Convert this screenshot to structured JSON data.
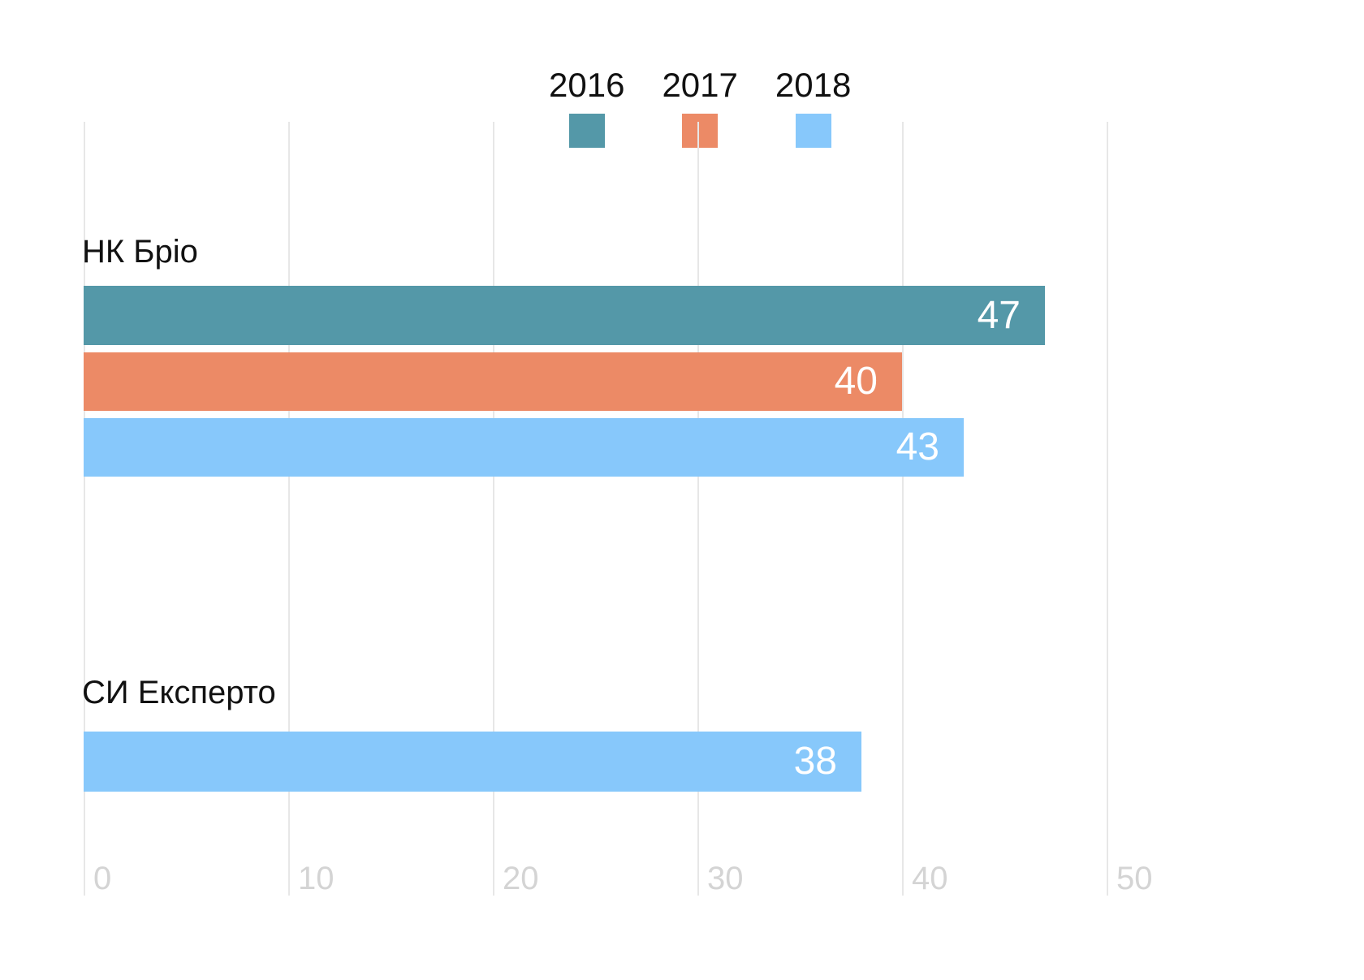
{
  "legend": {
    "items": [
      {
        "label": "2016",
        "color": "#5498A8"
      },
      {
        "label": "2017",
        "color": "#EC8A66"
      },
      {
        "label": "2018",
        "color": "#87C8FB"
      }
    ]
  },
  "x_axis": {
    "tick_labels": [
      "0",
      "10",
      "20",
      "30",
      "40",
      "50"
    ],
    "tick_values": [
      0,
      10,
      20,
      30,
      40,
      50
    ],
    "max": 50
  },
  "groups": [
    {
      "label": "НК Бріо",
      "bars": [
        {
          "series": "2016",
          "value": 47,
          "color": "#5498A8"
        },
        {
          "series": "2017",
          "value": 40,
          "color": "#EC8A66"
        },
        {
          "series": "2018",
          "value": 43,
          "color": "#87C8FB"
        }
      ]
    },
    {
      "label": "СИ Експерто",
      "bars": [
        {
          "series": "2018",
          "value": 38,
          "color": "#87C8FB"
        }
      ]
    }
  ],
  "chart_data": {
    "type": "bar",
    "orientation": "horizontal",
    "title": "",
    "xlabel": "",
    "ylabel": "",
    "categories": [
      "НК Бріо",
      "СИ Експерто"
    ],
    "series": [
      {
        "name": "2016",
        "values": [
          47,
          null
        ]
      },
      {
        "name": "2017",
        "values": [
          40,
          null
        ]
      },
      {
        "name": "2018",
        "values": [
          43,
          38
        ]
      }
    ],
    "colors": {
      "2016": "#5498A8",
      "2017": "#EC8A66",
      "2018": "#87C8FB"
    },
    "xlim": [
      0,
      50
    ],
    "xticks": [
      0,
      10,
      20,
      30,
      40,
      50
    ],
    "grid": "vertical-gridlines-only",
    "legend_position": "top-center",
    "value_labels": "inside-bar-end"
  }
}
